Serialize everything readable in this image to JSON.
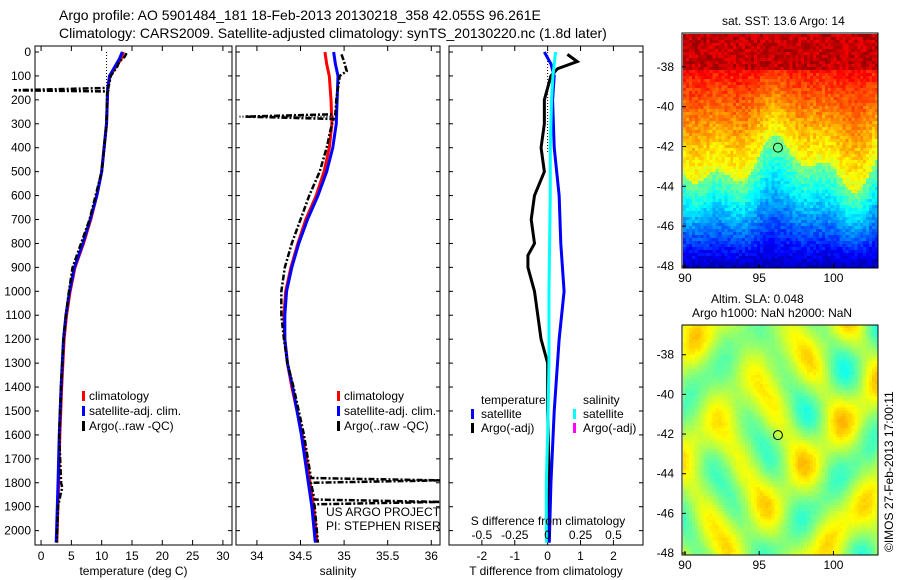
{
  "title_line1": "Argo profile: AO 5901484_181 18-Feb-2013 20130218_358 42.055S 96.261E",
  "title_line2": "Climatology: CARS2009. Satellite-adjusted climatology: synTS_20130220.nc (1.8d later)",
  "credit": "©IMOS 27-Feb-2013 17:00:11",
  "colors": {
    "climatology": "#ff0000",
    "satellite": "#0000ff",
    "argo": "#000000",
    "sal_satellite": "#00ffff",
    "sal_argo": "#ff00ff"
  },
  "chart_data": [
    {
      "type": "line",
      "id": "temperature",
      "xlabel": "temperature (deg C)",
      "ylabel": "",
      "xlim": [
        -1,
        31.5
      ],
      "ylim": [
        2060,
        -25
      ],
      "xticks": [
        0,
        5,
        10,
        15,
        20,
        25,
        30
      ],
      "yticks": [
        0,
        100,
        200,
        300,
        400,
        500,
        600,
        700,
        800,
        900,
        1000,
        1100,
        1200,
        1300,
        1400,
        1500,
        1600,
        1700,
        1800,
        1900,
        2000
      ],
      "legend": [
        "climatology",
        "satellite-adj. clim.",
        "Argo(..raw -QC)"
      ],
      "series": [
        {
          "name": "climatology",
          "depth": [
            0,
            30,
            60,
            100,
            150,
            300,
            500,
            600,
            700,
            800,
            900,
            1000,
            1100,
            1200,
            1400,
            1600,
            1800,
            2050
          ],
          "values": [
            13.6,
            13.2,
            12.4,
            11.4,
            11.0,
            10.8,
            10.0,
            9.2,
            8.2,
            7.0,
            5.6,
            4.8,
            4.2,
            3.8,
            3.4,
            3.1,
            2.9,
            2.6
          ]
        },
        {
          "name": "satellite-adj. clim.",
          "depth": [
            0,
            30,
            60,
            100,
            150,
            300,
            500,
            600,
            700,
            800,
            900,
            1000,
            1100,
            1200,
            1400,
            1600,
            1800,
            2050
          ],
          "values": [
            13.4,
            12.9,
            12.2,
            11.3,
            11.0,
            10.8,
            10.0,
            9.2,
            8.1,
            6.9,
            5.5,
            4.7,
            4.1,
            3.7,
            3.3,
            3.0,
            2.8,
            2.5
          ]
        },
        {
          "name": "Argo(..raw -QC)",
          "depth": [
            5,
            20,
            40,
            60,
            100,
            150,
            160,
            165,
            170,
            300,
            500,
            600,
            700,
            800,
            900,
            1000,
            1100,
            1200,
            1400,
            1600,
            1800,
            1820,
            1850,
            1900,
            2050
          ],
          "values": [
            14.1,
            13.8,
            12.9,
            12.6,
            11.5,
            11.1,
            -4.5,
            11.0,
            10.9,
            10.8,
            10.0,
            9.0,
            8.0,
            6.6,
            5.2,
            4.6,
            4.1,
            3.7,
            3.3,
            3.0,
            3.3,
            3.5,
            3.2,
            2.8,
            2.6
          ]
        }
      ]
    },
    {
      "type": "line",
      "id": "salinity",
      "xlabel": "salinity",
      "xlim": [
        33.76,
        36.1
      ],
      "ylim": [
        2060,
        -25
      ],
      "xticks": [
        34,
        34.5,
        35,
        35.5,
        36
      ],
      "legend": [
        "climatology",
        "satellite-adj. clim.",
        "Argo(..raw -QC)"
      ],
      "annotation": [
        "US ARGO PROJECT",
        "PI: STEPHEN RISER"
      ],
      "series": [
        {
          "name": "climatology",
          "depth": [
            0,
            50,
            100,
            200,
            300,
            400,
            500,
            600,
            700,
            800,
            900,
            1000,
            1100,
            1200,
            1300,
            1400,
            1500,
            1600,
            1700,
            1800,
            1900,
            2050
          ],
          "values": [
            34.78,
            34.8,
            34.83,
            34.85,
            34.86,
            34.83,
            34.77,
            34.68,
            34.56,
            34.47,
            34.39,
            34.33,
            34.31,
            34.32,
            34.35,
            34.4,
            34.46,
            34.52,
            34.57,
            34.61,
            34.65,
            34.69
          ]
        },
        {
          "name": "satellite-adj. clim.",
          "depth": [
            0,
            50,
            100,
            200,
            300,
            400,
            500,
            600,
            700,
            800,
            900,
            1000,
            1100,
            1200,
            1300,
            1400,
            1500,
            1600,
            1700,
            1800,
            1900,
            2050
          ],
          "values": [
            34.88,
            34.9,
            34.93,
            34.92,
            34.91,
            34.87,
            34.8,
            34.7,
            34.58,
            34.48,
            34.4,
            34.34,
            34.32,
            34.32,
            34.35,
            34.41,
            34.46,
            34.51,
            34.55,
            34.59,
            34.63,
            34.67
          ]
        },
        {
          "name": "Argo(..raw -QC)",
          "depth": [
            10,
            40,
            80,
            100,
            200,
            260,
            270,
            280,
            300,
            400,
            500,
            600,
            700,
            800,
            900,
            1000,
            1100,
            1200,
            1300,
            1400,
            1600,
            1780,
            1790,
            1800,
            1870,
            1880,
            1890,
            2050
          ],
          "values": [
            34.97,
            35.0,
            35.03,
            34.95,
            34.91,
            34.9,
            33.86,
            34.88,
            34.86,
            34.8,
            34.72,
            34.6,
            34.5,
            34.4,
            34.32,
            34.28,
            34.28,
            34.31,
            34.35,
            34.42,
            34.54,
            34.62,
            36.1,
            34.62,
            34.66,
            36.1,
            34.66,
            34.7
          ]
        }
      ]
    },
    {
      "type": "line",
      "id": "difference",
      "xlabel": "T difference from climatology",
      "x2label": "S difference from climatology",
      "xlim": [
        -3,
        2.9
      ],
      "ylim": [
        2060,
        -25
      ],
      "xticks": [
        -2,
        -1,
        0,
        1,
        2
      ],
      "x2ticks": [
        -0.5,
        -0.25,
        0,
        0.25,
        0.5
      ],
      "legend_temperature": {
        "title": "temperature",
        "items": [
          "satellite",
          "Argo(-adj)"
        ]
      },
      "legend_salinity": {
        "title": "salinity",
        "items": [
          "satellite",
          "Argo(-adj)"
        ]
      },
      "series": [
        {
          "name": "T satellite",
          "depth": [
            0,
            50,
            100,
            200,
            400,
            600,
            800,
            1000,
            1200,
            1500,
            1800,
            2050
          ],
          "values": [
            -0.1,
            0.1,
            0.2,
            0.15,
            0.2,
            0.35,
            0.4,
            0.5,
            0.35,
            0.2,
            0.1,
            0.05
          ]
        },
        {
          "name": "T Argo(-adj)",
          "depth": [
            10,
            40,
            70,
            100,
            200,
            300,
            400,
            500,
            600,
            700,
            800,
            850,
            900,
            1000,
            1100,
            1200,
            1300,
            1500,
            1800,
            2050
          ],
          "values": [
            0.6,
            0.9,
            0.3,
            0.1,
            -0.1,
            -0.1,
            -0.2,
            -0.1,
            -0.4,
            -0.5,
            -0.4,
            -0.6,
            -0.6,
            -0.4,
            -0.3,
            -0.2,
            0,
            0,
            0.05,
            0
          ],
          "dotted_depth": [
            0,
            150
          ],
          "dotted_values": [
            0,
            0
          ]
        },
        {
          "name": "S satellite",
          "depth": [
            0,
            50,
            100,
            200,
            400,
            600,
            800,
            1000,
            1300,
            1600,
            1800,
            2050
          ],
          "values": [
            0.06,
            0.05,
            0.04,
            0.03,
            0.02,
            0.02,
            0.015,
            0.01,
            0.01,
            0.0,
            -0.01,
            -0.01
          ]
        }
      ]
    }
  ],
  "maps": [
    {
      "title": "sat. SST: 13.6 Argo: 14",
      "lon_ticks": [
        90,
        95,
        100
      ],
      "lat_ticks": [
        -38,
        -40,
        -42,
        -44,
        -46,
        -48
      ],
      "lon_range": [
        89.8,
        103
      ],
      "lat_range": [
        -48.1,
        -36.3
      ],
      "marker": {
        "lon": 96.261,
        "lat": -42.055
      }
    },
    {
      "title_line1": "Altim. SLA: 0.048",
      "title_line2": "Argo h1000: NaN h2000: NaN",
      "lon_ticks": [
        90,
        95,
        100
      ],
      "lat_ticks": [
        -38,
        -40,
        -42,
        -44,
        -46,
        -48
      ],
      "lon_range": [
        89.8,
        103
      ],
      "lat_range": [
        -48.1,
        -36.5
      ],
      "marker": {
        "lon": 96.261,
        "lat": -42.055
      }
    }
  ]
}
